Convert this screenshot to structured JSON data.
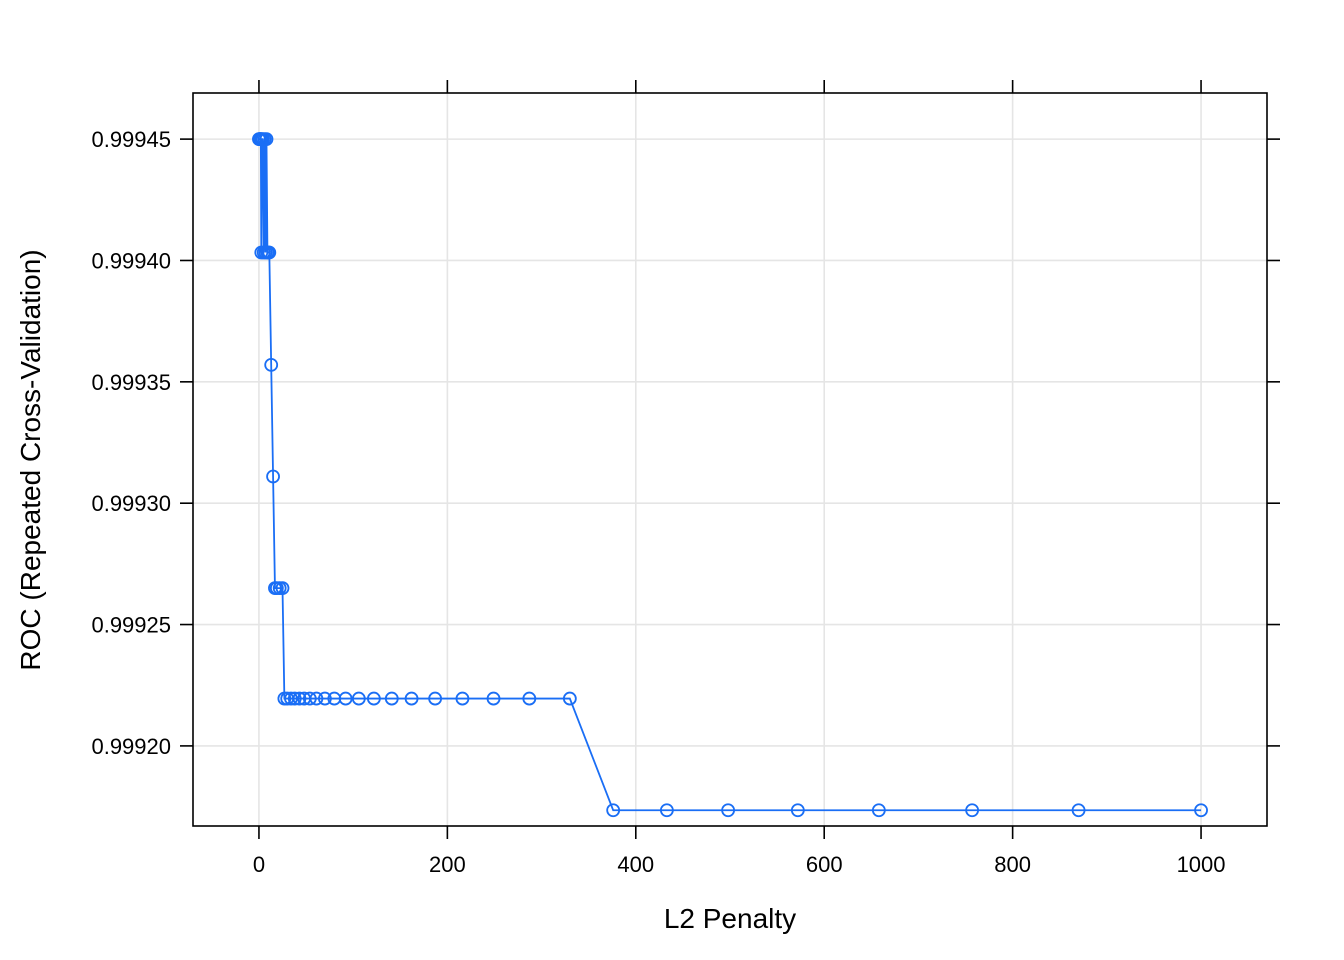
{
  "chart_data": {
    "type": "line",
    "xlabel": "L2 Penalty",
    "ylabel": "ROC (Repeated Cross-Validation)",
    "xlim": [
      -70,
      1070
    ],
    "ylim": [
      0.999167,
      0.999469
    ],
    "x_ticks": [
      0,
      200,
      400,
      600,
      800,
      1000
    ],
    "y_ticks": [
      0.9992,
      0.99925,
      0.9993,
      0.99935,
      0.9994,
      0.99945
    ],
    "x_tick_labels": [
      "0",
      "200",
      "400",
      "600",
      "800",
      "1000"
    ],
    "y_tick_labels": [
      "0.99920",
      "0.99925",
      "0.99930",
      "0.99935",
      "0.99940",
      "0.99945"
    ],
    "grid": true,
    "markers": "open-circle",
    "line_color": "#1a6ef5",
    "grid_color": "#e5e5e5",
    "x": [
      0,
      0.5,
      1,
      1.5,
      2,
      2.5,
      3,
      4,
      5,
      6,
      7,
      8,
      9,
      10,
      11,
      13,
      15,
      17,
      19,
      22,
      25,
      27,
      30,
      34,
      38,
      43,
      48,
      54,
      61,
      70,
      80,
      92,
      106,
      122,
      141,
      162,
      187,
      216,
      249,
      287,
      330,
      376,
      433,
      498,
      572,
      658,
      757,
      870,
      1000
    ],
    "y": [
      0.99945,
      0.99945,
      0.99945,
      0.99945,
      0.99945,
      0.9994033,
      0.99945,
      0.99945,
      0.9994033,
      0.99945,
      0.9994033,
      0.99945,
      0.9994033,
      0.9994033,
      0.9994033,
      0.999357,
      0.999311,
      0.999265,
      0.999265,
      0.999265,
      0.999265,
      0.9992195,
      0.9992195,
      0.9992195,
      0.9992195,
      0.9992195,
      0.9992195,
      0.9992195,
      0.9992195,
      0.9992195,
      0.9992195,
      0.9992195,
      0.9992195,
      0.9992195,
      0.9992195,
      0.9992195,
      0.9992195,
      0.9992195,
      0.9992195,
      0.9992195,
      0.9992195,
      0.9991735,
      0.9991735,
      0.9991735,
      0.9991735,
      0.9991735,
      0.9991735,
      0.9991735,
      0.9991735
    ]
  }
}
